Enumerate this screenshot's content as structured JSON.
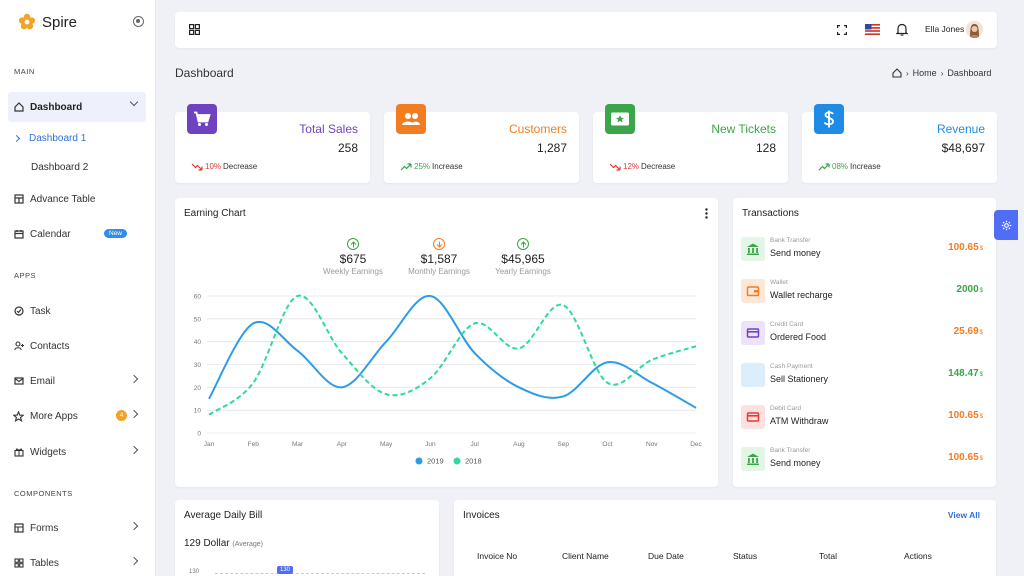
{
  "brand": {
    "name": "Spire"
  },
  "sidebar": {
    "sections": {
      "main": "MAIN",
      "apps": "APPS",
      "components": "COMPONENTS"
    },
    "dashboard": "Dashboard",
    "dashboard_items": [
      "Dashboard 1",
      "Dashboard 2"
    ],
    "advance_table": "Advance Table",
    "calendar": "Calendar",
    "calendar_badge": "New",
    "task": "Task",
    "contacts": "Contacts",
    "email": "Email",
    "more_apps": "More Apps",
    "more_apps_badge": "4",
    "widgets": "Widgets",
    "forms": "Forms",
    "tables": "Tables"
  },
  "header": {
    "user_name": "Ella Jones"
  },
  "page": {
    "title": "Dashboard",
    "breadcrumb": [
      "Home",
      "Dashboard"
    ]
  },
  "stats": [
    {
      "label": "Total Sales",
      "value": "258",
      "pct": "10%",
      "trend": "Decrease",
      "color": "#6f42c1"
    },
    {
      "label": "Customers",
      "value": "1,287",
      "pct": "25%",
      "trend": "Increase",
      "color": "#f47c20"
    },
    {
      "label": "New Tickets",
      "value": "128",
      "pct": "12%",
      "trend": "Decrease",
      "color": "#3aa649"
    },
    {
      "label": "Revenue",
      "value": "$48,697",
      "pct": "08%",
      "trend": "Increase",
      "color": "#1e8ce6"
    }
  ],
  "earning": {
    "title": "Earning Chart",
    "kpis": [
      {
        "value": "$675",
        "label": "Weekly Earnings",
        "color": "#3aa649",
        "dir": "up"
      },
      {
        "value": "$1,587",
        "label": "Monthly Earnings",
        "color": "#f47c20",
        "dir": "down"
      },
      {
        "value": "$45,965",
        "label": "Yearly Earnings",
        "color": "#3aa649",
        "dir": "up"
      }
    ]
  },
  "chart_data": {
    "type": "line",
    "categories": [
      "Jan",
      "Feb",
      "Mar",
      "Apr",
      "May",
      "Jun",
      "Jul",
      "Aug",
      "Sep",
      "Oct",
      "Nov",
      "Dec"
    ],
    "series": [
      {
        "name": "2019",
        "color": "#2d9be8",
        "values": [
          15,
          48,
          36,
          20,
          40,
          60,
          35,
          20,
          16,
          31,
          22,
          11
        ]
      },
      {
        "name": "2018",
        "color": "#2fd9a0",
        "values": [
          8,
          22,
          60,
          35,
          17,
          24,
          48,
          37,
          56,
          22,
          32,
          38
        ]
      }
    ],
    "ylim": [
      0,
      60
    ],
    "yticks": [
      0,
      10,
      20,
      30,
      40,
      50,
      60
    ],
    "legend": "bottom",
    "grid": true
  },
  "transactions": {
    "title": "Transactions",
    "items": [
      {
        "type": "Bank Transfer",
        "name": "Send money",
        "amount": "100.65",
        "unit": "$",
        "color": "#f47c20",
        "icon": "bank-icon",
        "bg": "#e3f5e5",
        "fg": "#3aa649"
      },
      {
        "type": "Wallet",
        "name": "Wallet recharge",
        "amount": "2000",
        "unit": "$",
        "color": "#3aa649",
        "icon": "wallet-icon",
        "bg": "#fde8d8",
        "fg": "#f47c20"
      },
      {
        "type": "Credit Card",
        "name": "Ordered Food",
        "amount": "25.69",
        "unit": "$",
        "color": "#f47c20",
        "icon": "credit-card-icon",
        "bg": "#ece3fa",
        "fg": "#6f42c1"
      },
      {
        "type": "Cash Payment",
        "name": "Sell Stationery",
        "amount": "148.47",
        "unit": "$",
        "color": "#3aa649",
        "icon": "dollar-icon",
        "bg": "#dceefc",
        "fg": "#1e8ce6"
      },
      {
        "type": "Debit Card",
        "name": "ATM Withdraw",
        "amount": "100.65",
        "unit": "$",
        "color": "#f47c20",
        "icon": "debit-card-icon",
        "bg": "#fde1e1",
        "fg": "#e53935"
      },
      {
        "type": "Bank Transfer",
        "name": "Send money",
        "amount": "100.65",
        "unit": "$",
        "color": "#f47c20",
        "icon": "bank-icon",
        "bg": "#e3f5e5",
        "fg": "#3aa649"
      }
    ]
  },
  "bill": {
    "title": "Average Daily Bill",
    "value": "129 Dollar",
    "suffix": "(Average)",
    "axis": "130",
    "tag": "130"
  },
  "invoices": {
    "title": "Invoices",
    "view_all": "View All",
    "columns": [
      "Invoice No",
      "Client Name",
      "Due Date",
      "Status",
      "Total",
      "Actions"
    ]
  }
}
